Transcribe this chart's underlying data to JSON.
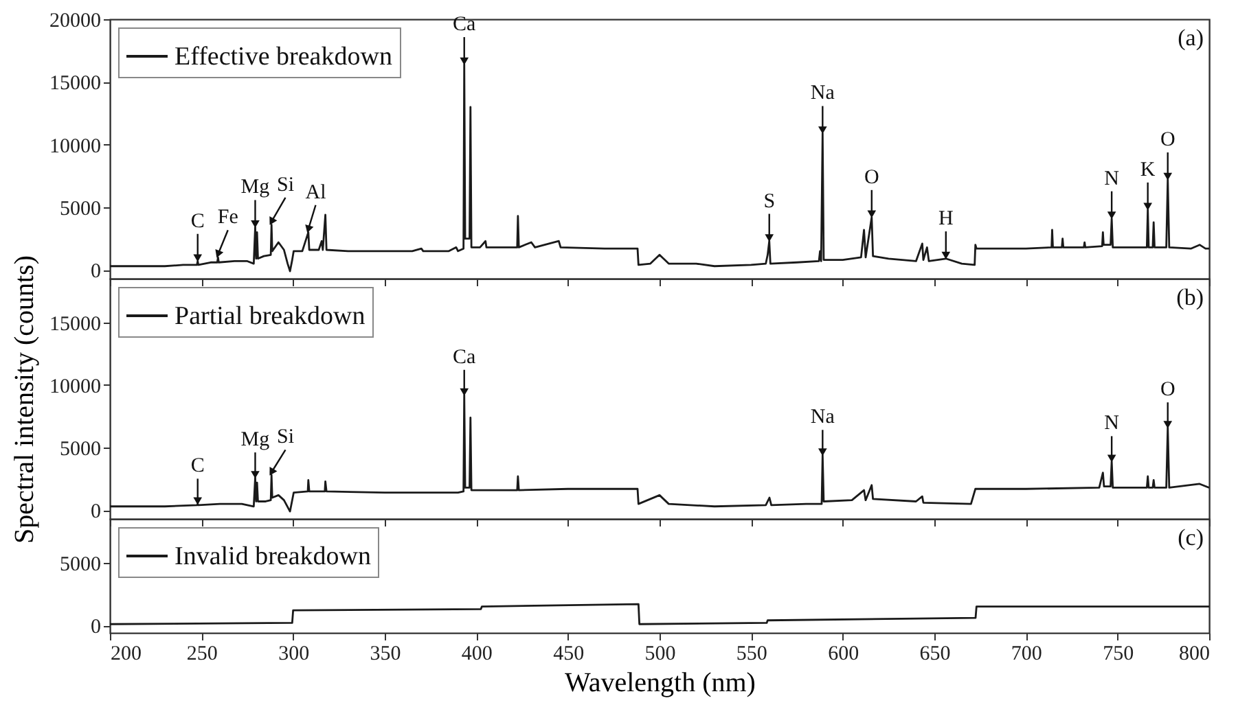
{
  "chart_data": [
    {
      "type": "line",
      "xlim": [
        200,
        800
      ],
      "xticks": [
        200,
        250,
        300,
        350,
        400,
        450,
        500,
        550,
        600,
        650,
        700,
        750,
        800
      ],
      "ylim": [
        -700,
        20000
      ],
      "yticks": [
        0,
        5000,
        10000,
        15000,
        20000
      ],
      "tick_labels": "y",
      "legend": "top left",
      "x": [
        200,
        215,
        230,
        240,
        246,
        247.5,
        247.9,
        248.3,
        255,
        258.6,
        259,
        259.4,
        268,
        275,
        278.5,
        279.3,
        279.8,
        280.3,
        280.8,
        284,
        287.8,
        288.2,
        288.6,
        292,
        295,
        297,
        298.3,
        299.5,
        300.3,
        305,
        308.3,
        308.8,
        314,
        315.6,
        316.2,
        317.6,
        318.2,
        330,
        350,
        365,
        370,
        371,
        385,
        389,
        390,
        393,
        393.4,
        393.9,
        396.3,
        396.8,
        397.3,
        402,
        405,
        405.5,
        422.3,
        422.7,
        423.2,
        430,
        432,
        445,
        446,
        470,
        488,
        488.5,
        495,
        500,
        505,
        520,
        530,
        550,
        558,
        559,
        559.9,
        560.5,
        575,
        587,
        587.6,
        588.2,
        589,
        589.6,
        600,
        610,
        611.6,
        612.5,
        615.8,
        616.5,
        625,
        640,
        643.4,
        644,
        646,
        647,
        656.3,
        665,
        672,
        672.4,
        673,
        700,
        714,
        714.3,
        714.7,
        719.6,
        720,
        720.4,
        731.6,
        732,
        732.4,
        741.6,
        742,
        742.4,
        746.2,
        746.8,
        747.4,
        766,
        766.5,
        767,
        769.2,
        769.7,
        770.2,
        776.6,
        777.4,
        778.2,
        790,
        794.8,
        798,
        800
      ],
      "series": [
        {
          "name": "Effective breakdown",
          "color": "#1a1a1a",
          "values": [
            300,
            300,
            300,
            400,
            400,
            400,
            700,
            400,
            600,
            600,
            1000,
            600,
            700,
            700,
            500,
            3400,
            900,
            3000,
            900,
            1100,
            1200,
            3600,
            1500,
            2200,
            1600,
            500,
            -100,
            800,
            1500,
            1500,
            3000,
            1600,
            1600,
            2300,
            1600,
            4400,
            1600,
            1500,
            1500,
            1500,
            1700,
            1500,
            1500,
            1800,
            1500,
            1700,
            16400,
            2500,
            2500,
            13000,
            1800,
            1800,
            2300,
            1800,
            1800,
            4300,
            1800,
            2200,
            1800,
            2300,
            1800,
            1700,
            1700,
            400,
            500,
            1200,
            500,
            500,
            300,
            400,
            500,
            1200,
            2300,
            500,
            600,
            700,
            1500,
            700,
            10900,
            800,
            800,
            1000,
            3200,
            1000,
            4200,
            1100,
            900,
            700,
            2100,
            800,
            1800,
            700,
            900,
            500,
            400,
            2000,
            1700,
            1700,
            1800,
            3200,
            1800,
            1800,
            2500,
            1800,
            1800,
            2200,
            1800,
            1900,
            3000,
            2000,
            2000,
            4100,
            1800,
            1800,
            4800,
            1800,
            1800,
            3800,
            1800,
            1800,
            7200,
            1800,
            1700,
            2000,
            1700,
            1700
          ]
        }
      ],
      "annotations": [
        {
          "text": "C",
          "x": 247.9,
          "y": 700
        },
        {
          "text": "Fe",
          "x": 259,
          "y": 1000
        },
        {
          "text": "Mg",
          "x": 279.3,
          "y": 3400
        },
        {
          "text": "Si",
          "x": 288.2,
          "y": 3600
        },
        {
          "text": "Al",
          "x": 308.3,
          "y": 3000
        },
        {
          "text": "Ca",
          "x": 393.4,
          "y": 16400
        },
        {
          "text": "S",
          "x": 559.9,
          "y": 2300
        },
        {
          "text": "Na",
          "x": 589,
          "y": 10900
        },
        {
          "text": "O",
          "x": 615.8,
          "y": 4200
        },
        {
          "text": "H",
          "x": 656.3,
          "y": 900
        },
        {
          "text": "N",
          "x": 746.8,
          "y": 4100
        },
        {
          "text": "K",
          "x": 766.5,
          "y": 4800
        },
        {
          "text": "O",
          "x": 777.4,
          "y": 7200
        },
        "(a)"
      ]
    },
    {
      "type": "line",
      "xlim": [
        200,
        800
      ],
      "xticks": [
        200,
        250,
        300,
        350,
        400,
        450,
        500,
        550,
        600,
        650,
        700,
        750,
        800
      ],
      "ylim": [
        -700,
        18500
      ],
      "yticks": [
        0,
        5000,
        10000,
        15000
      ],
      "tick_labels": "y",
      "legend": "top left",
      "ylabel": "Spectral intensity (counts)",
      "x": [
        200,
        230,
        247.5,
        247.9,
        248.3,
        260,
        272,
        278.5,
        279.3,
        279.8,
        280.3,
        280.8,
        285,
        287.8,
        288.2,
        288.6,
        292,
        295,
        298.3,
        300.3,
        308,
        308.3,
        308.8,
        317.3,
        317.6,
        318.2,
        350,
        390,
        393,
        393.4,
        393.9,
        396.3,
        396.8,
        397.3,
        422.3,
        422.7,
        423.2,
        450,
        488,
        488.5,
        500,
        505,
        530,
        558,
        560,
        561,
        580,
        588.5,
        589,
        589.6,
        605,
        611.6,
        612.5,
        615.8,
        616.5,
        640,
        643.4,
        644,
        670,
        672.4,
        700,
        740,
        742,
        742.6,
        746.2,
        746.8,
        747.4,
        766,
        766.5,
        767,
        769.2,
        769.7,
        770.2,
        776.6,
        777.4,
        778.2,
        794.8,
        800
      ],
      "series": [
        {
          "name": "Partial breakdown",
          "color": "#1a1a1a",
          "values": [
            300,
            300,
            400,
            500,
            400,
            500,
            500,
            300,
            2600,
            700,
            2200,
            700,
            700,
            800,
            2800,
            1000,
            1200,
            800,
            -100,
            1400,
            1500,
            2400,
            1500,
            1500,
            2300,
            1500,
            1400,
            1400,
            1500,
            9200,
            1800,
            1800,
            7400,
            1600,
            1600,
            2700,
            1600,
            1700,
            1700,
            500,
            1200,
            500,
            300,
            400,
            1000,
            400,
            500,
            500,
            4400,
            700,
            800,
            1600,
            800,
            2000,
            900,
            700,
            1100,
            600,
            500,
            1700,
            1700,
            1800,
            3000,
            1900,
            1900,
            3900,
            1800,
            1800,
            2700,
            1800,
            1800,
            2400,
            1800,
            1800,
            6600,
            1800,
            2100,
            1800
          ]
        }
      ],
      "annotations": [
        {
          "text": "C",
          "x": 247.9,
          "y": 500
        },
        {
          "text": "Mg",
          "x": 279.3,
          "y": 2600
        },
        {
          "text": "Si",
          "x": 288.2,
          "y": 2800
        },
        {
          "text": "Ca",
          "x": 393.4,
          "y": 9200
        },
        {
          "text": "Na",
          "x": 589,
          "y": 4400
        },
        {
          "text": "N",
          "x": 746.8,
          "y": 3900
        },
        {
          "text": "O",
          "x": 777.4,
          "y": 6600
        },
        "(b)"
      ]
    },
    {
      "type": "line",
      "xlim": [
        200,
        800
      ],
      "xticks": [
        200,
        250,
        300,
        350,
        400,
        450,
        500,
        550,
        600,
        650,
        700,
        750,
        800
      ],
      "ylim": [
        -600,
        8500
      ],
      "yticks": [
        0,
        5000
      ],
      "legend": "top left",
      "xlabel": "Wavelength (nm)",
      "x": [
        200,
        299.5,
        300,
        402.5,
        403,
        488.5,
        489,
        558.5,
        559,
        672.5,
        673,
        800
      ],
      "series": [
        {
          "name": "Invalid breakdown",
          "color": "#1a1a1a",
          "values": [
            100,
            200,
            1200,
            1300,
            1500,
            1700,
            100,
            200,
            400,
            600,
            1500,
            1500
          ]
        }
      ],
      "annotations": [
        "(c)"
      ]
    }
  ]
}
